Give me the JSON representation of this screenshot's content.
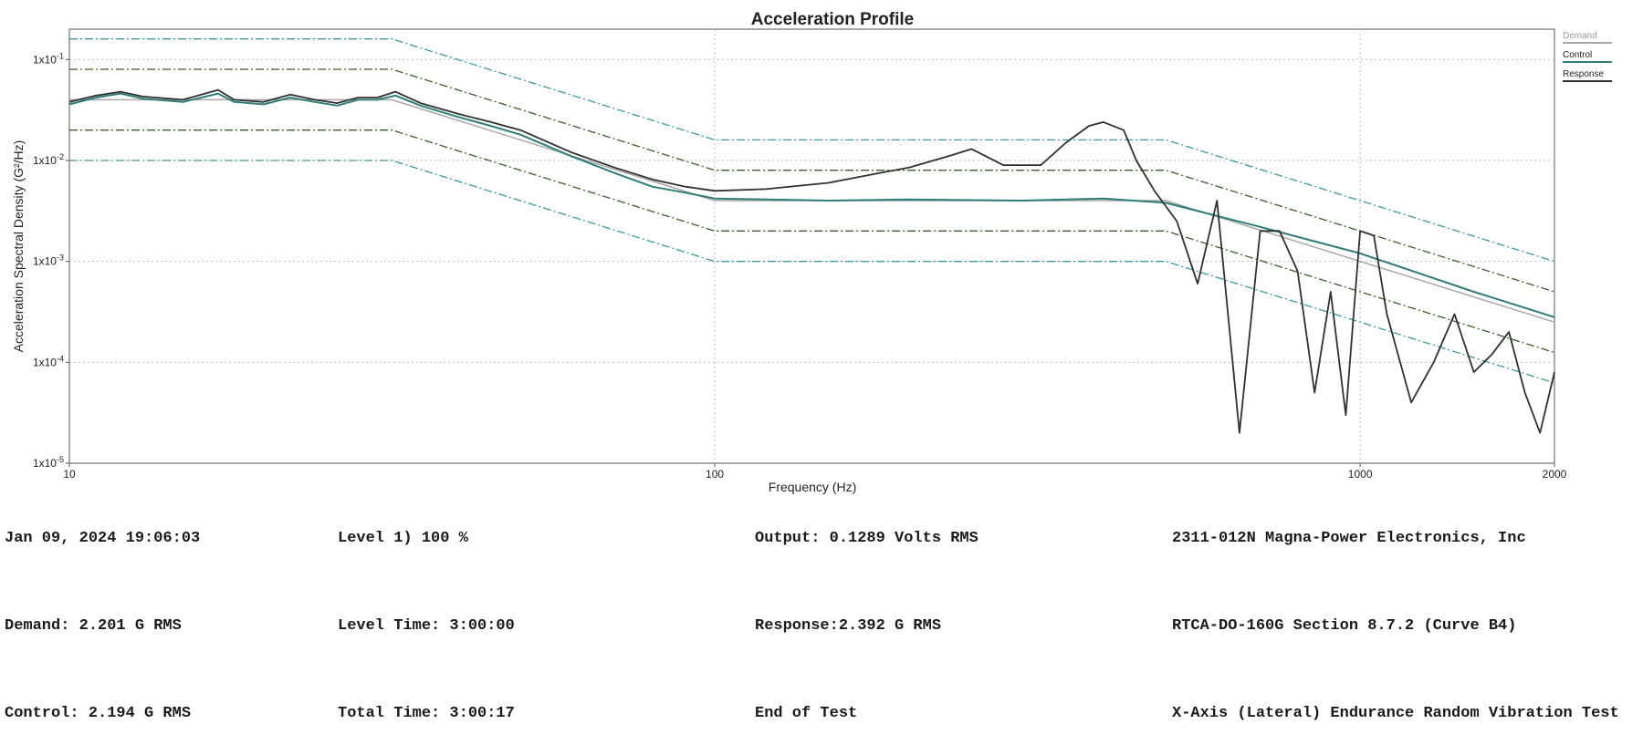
{
  "chart_data": {
    "type": "line",
    "title": "Acceleration Profile",
    "xlabel": "Frequency (Hz)",
    "ylabel": "Acceleration Spectral Density (G²/Hz)",
    "x_scale": "log",
    "y_scale": "log",
    "xlim": [
      10,
      2000
    ],
    "ylim": [
      1e-05,
      0.2
    ],
    "x_ticks": [
      {
        "value": 10,
        "label": "10"
      },
      {
        "value": 100,
        "label": "100"
      },
      {
        "value": 1000,
        "label": "1000"
      },
      {
        "value": 2000,
        "label": "2000"
      }
    ],
    "y_ticks": [
      {
        "value": 0.1,
        "base": "1x10",
        "exp": "-1"
      },
      {
        "value": 0.01,
        "base": "1x10",
        "exp": "-2"
      },
      {
        "value": 0.001,
        "base": "1x10",
        "exp": "-3"
      },
      {
        "value": 0.0001,
        "base": "1x10",
        "exp": "-4"
      },
      {
        "value": 1e-05,
        "base": "1x10",
        "exp": "-5"
      }
    ],
    "grid": true,
    "legend_position": "top-right",
    "legend": [
      {
        "name": "Demand",
        "color": "#a8a8a8"
      },
      {
        "name": "Control",
        "color": "#2e7d7a"
      },
      {
        "name": "Response",
        "color": "#303030"
      }
    ],
    "tolerance_lines": [
      {
        "role": "abort-high",
        "color": "#3a9aa0",
        "style": "dashdot",
        "points": [
          [
            10,
            0.16
          ],
          [
            31.6,
            0.16
          ],
          [
            100,
            0.016
          ],
          [
            500,
            0.016
          ],
          [
            2000,
            0.001
          ]
        ]
      },
      {
        "role": "alarm-high",
        "color": "#3d5e2a",
        "style": "dashdot",
        "points": [
          [
            10,
            0.08
          ],
          [
            31.6,
            0.08
          ],
          [
            100,
            0.008
          ],
          [
            500,
            0.008
          ],
          [
            2000,
            0.0005
          ]
        ]
      },
      {
        "role": "alarm-low",
        "color": "#3d5e2a",
        "style": "dashdot",
        "points": [
          [
            10,
            0.02
          ],
          [
            31.6,
            0.02
          ],
          [
            100,
            0.002
          ],
          [
            500,
            0.002
          ],
          [
            2000,
            0.000125
          ]
        ]
      },
      {
        "role": "abort-low",
        "color": "#3a9aa0",
        "style": "dashdot",
        "points": [
          [
            10,
            0.01
          ],
          [
            31.6,
            0.01
          ],
          [
            100,
            0.001
          ],
          [
            500,
            0.001
          ],
          [
            2000,
            6.25e-05
          ]
        ]
      }
    ],
    "series": [
      {
        "name": "Demand",
        "color": "#a8a8a8",
        "points": [
          [
            10,
            0.04
          ],
          [
            31.6,
            0.04
          ],
          [
            100,
            0.004
          ],
          [
            500,
            0.004
          ],
          [
            2000,
            0.00025
          ]
        ]
      },
      {
        "name": "Control",
        "color": "#2e7d7a",
        "points": [
          [
            10,
            0.036
          ],
          [
            11,
            0.042
          ],
          [
            12,
            0.046
          ],
          [
            13,
            0.041
          ],
          [
            15,
            0.038
          ],
          [
            17,
            0.046
          ],
          [
            18,
            0.038
          ],
          [
            20,
            0.036
          ],
          [
            22,
            0.042
          ],
          [
            24,
            0.038
          ],
          [
            26,
            0.035
          ],
          [
            28,
            0.04
          ],
          [
            30,
            0.04
          ],
          [
            32,
            0.044
          ],
          [
            35,
            0.035
          ],
          [
            40,
            0.027
          ],
          [
            45,
            0.022
          ],
          [
            50,
            0.018
          ],
          [
            60,
            0.011
          ],
          [
            70,
            0.0075
          ],
          [
            80,
            0.0055
          ],
          [
            90,
            0.0048
          ],
          [
            100,
            0.0042
          ],
          [
            150,
            0.004
          ],
          [
            200,
            0.0041
          ],
          [
            300,
            0.004
          ],
          [
            400,
            0.0042
          ],
          [
            500,
            0.0038
          ],
          [
            700,
            0.0022
          ],
          [
            1000,
            0.0012
          ],
          [
            1500,
            0.0005
          ],
          [
            2000,
            0.00028
          ]
        ]
      },
      {
        "name": "Response",
        "color": "#303030",
        "points": [
          [
            10,
            0.038
          ],
          [
            11,
            0.044
          ],
          [
            12,
            0.048
          ],
          [
            13,
            0.043
          ],
          [
            15,
            0.04
          ],
          [
            17,
            0.05
          ],
          [
            18,
            0.04
          ],
          [
            20,
            0.038
          ],
          [
            22,
            0.045
          ],
          [
            24,
            0.04
          ],
          [
            26,
            0.037
          ],
          [
            28,
            0.042
          ],
          [
            30,
            0.042
          ],
          [
            32,
            0.048
          ],
          [
            35,
            0.037
          ],
          [
            40,
            0.029
          ],
          [
            45,
            0.024
          ],
          [
            50,
            0.02
          ],
          [
            60,
            0.012
          ],
          [
            70,
            0.0085
          ],
          [
            80,
            0.0065
          ],
          [
            90,
            0.0055
          ],
          [
            100,
            0.005
          ],
          [
            120,
            0.0052
          ],
          [
            150,
            0.006
          ],
          [
            180,
            0.0075
          ],
          [
            200,
            0.0085
          ],
          [
            230,
            0.011
          ],
          [
            250,
            0.013
          ],
          [
            280,
            0.009
          ],
          [
            320,
            0.009
          ],
          [
            350,
            0.015
          ],
          [
            380,
            0.022
          ],
          [
            400,
            0.024
          ],
          [
            430,
            0.02
          ],
          [
            450,
            0.01
          ],
          [
            480,
            0.005
          ],
          [
            520,
            0.0025
          ],
          [
            560,
            0.0006
          ],
          [
            600,
            0.004
          ],
          [
            650,
            2e-05
          ],
          [
            700,
            0.002
          ],
          [
            750,
            0.002
          ],
          [
            800,
            0.0008
          ],
          [
            850,
            5e-05
          ],
          [
            900,
            0.0005
          ],
          [
            950,
            3e-05
          ],
          [
            1000,
            0.002
          ],
          [
            1050,
            0.0018
          ],
          [
            1100,
            0.0003
          ],
          [
            1200,
            4e-05
          ],
          [
            1300,
            0.0001
          ],
          [
            1400,
            0.0003
          ],
          [
            1500,
            8e-05
          ],
          [
            1600,
            0.00012
          ],
          [
            1700,
            0.0002
          ],
          [
            1800,
            5e-05
          ],
          [
            1900,
            2e-05
          ],
          [
            2000,
            8e-05
          ]
        ]
      }
    ]
  },
  "info": {
    "datetime": "Jan 09, 2024 19:06:03",
    "level": "Level 1) 100 %",
    "output": "Output: 0.1289 Volts RMS",
    "company": "2311-012N Magna-Power Electronics, Inc",
    "demand": "Demand: 2.201 G RMS",
    "level_time": "Level Time: 3:00:00",
    "response": "Response:2.392 G RMS",
    "standard": "RTCA-DO-160G Section 8.7.2 (Curve B4)",
    "control": "Control: 2.194 G RMS",
    "total_time": "Total Time: 3:00:17",
    "status": "End of Test",
    "test_name": "X-Axis (Lateral) Endurance Random Vibration Test"
  }
}
